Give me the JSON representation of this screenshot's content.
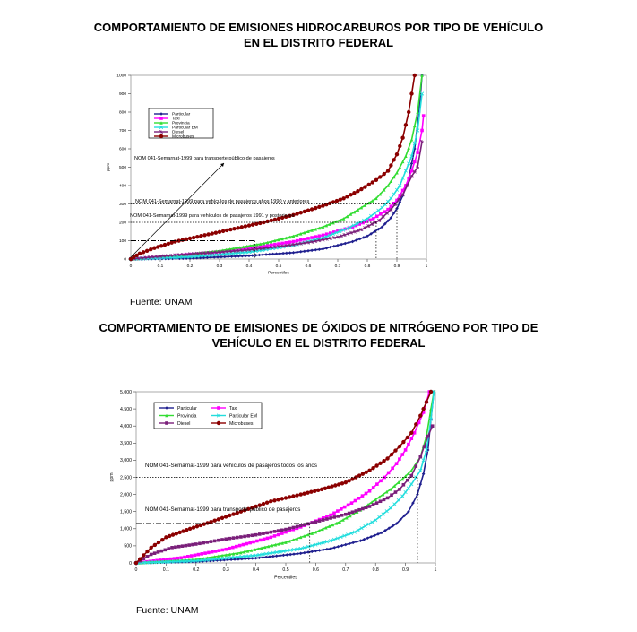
{
  "chart_data": [
    {
      "type": "scatter",
      "title": "COMPORTAMIENTO DE EMISIONES HIDROCARBUROS POR TIPO DE VEHÍCULO",
      "title_line2": "EN EL DISTRITO FEDERAL",
      "xlabel": "Percentiles",
      "ylabel": "ppm",
      "xlim": [
        0,
        1
      ],
      "ylim": [
        0,
        1000
      ],
      "x_ticks": [
        "0",
        "0.1",
        "0.2",
        "0.3",
        "0.4",
        "0.5",
        "0.6",
        "0.7",
        "0.8",
        "0.9",
        "1"
      ],
      "y_ticks": [
        "0",
        "100",
        "200",
        "300",
        "400",
        "500",
        "600",
        "700",
        "800",
        "900",
        "1000"
      ],
      "legend_position": "top-left",
      "source": "Fuente: UNAM",
      "series": [
        {
          "name": "Particular",
          "color": "#1f1f8f",
          "marker": "diamond",
          "points": [
            [
              0,
              0
            ],
            [
              0.2,
              4
            ],
            [
              0.4,
              18
            ],
            [
              0.55,
              35
            ],
            [
              0.65,
              55
            ],
            [
              0.75,
              95
            ],
            [
              0.8,
              125
            ],
            [
              0.85,
              175
            ],
            [
              0.88,
              225
            ],
            [
              0.9,
              275
            ],
            [
              0.92,
              345
            ],
            [
              0.94,
              440
            ],
            [
              0.96,
              600
            ],
            [
              0.975,
              800
            ],
            [
              0.985,
              1000
            ]
          ]
        },
        {
          "name": "Taxi",
          "color": "#ff00ff",
          "marker": "square",
          "points": [
            [
              0,
              0
            ],
            [
              0.1,
              10
            ],
            [
              0.3,
              40
            ],
            [
              0.45,
              70
            ],
            [
              0.55,
              95
            ],
            [
              0.65,
              130
            ],
            [
              0.75,
              175
            ],
            [
              0.82,
              220
            ],
            [
              0.87,
              270
            ],
            [
              0.9,
              320
            ],
            [
              0.93,
              400
            ],
            [
              0.95,
              480
            ],
            [
              0.97,
              580
            ],
            [
              0.985,
              700
            ],
            [
              0.99,
              780
            ]
          ]
        },
        {
          "name": "Provincia",
          "color": "#33dd33",
          "marker": "triangle",
          "points": [
            [
              0,
              0
            ],
            [
              0.15,
              18
            ],
            [
              0.3,
              45
            ],
            [
              0.45,
              85
            ],
            [
              0.55,
              125
            ],
            [
              0.65,
              175
            ],
            [
              0.72,
              220
            ],
            [
              0.78,
              280
            ],
            [
              0.83,
              330
            ],
            [
              0.87,
              400
            ],
            [
              0.9,
              470
            ],
            [
              0.93,
              560
            ],
            [
              0.95,
              650
            ],
            [
              0.97,
              800
            ],
            [
              0.985,
              1000
            ]
          ]
        },
        {
          "name": "Particular EM",
          "color": "#22dddd",
          "marker": "x",
          "points": [
            [
              0,
              0
            ],
            [
              0.2,
              12
            ],
            [
              0.4,
              38
            ],
            [
              0.55,
              75
            ],
            [
              0.65,
              115
            ],
            [
              0.73,
              165
            ],
            [
              0.8,
              220
            ],
            [
              0.85,
              280
            ],
            [
              0.88,
              330
            ],
            [
              0.91,
              400
            ],
            [
              0.93,
              480
            ],
            [
              0.95,
              560
            ],
            [
              0.97,
              700
            ],
            [
              0.985,
              900
            ]
          ]
        },
        {
          "name": "Diesel",
          "color": "#7a1f7a",
          "marker": "asterisk",
          "points": [
            [
              0,
              0
            ],
            [
              0.1,
              15
            ],
            [
              0.2,
              28
            ],
            [
              0.3,
              38
            ],
            [
              0.4,
              50
            ],
            [
              0.5,
              68
            ],
            [
              0.6,
              90
            ],
            [
              0.7,
              120
            ],
            [
              0.78,
              160
            ],
            [
              0.84,
              210
            ],
            [
              0.88,
              270
            ],
            [
              0.92,
              350
            ],
            [
              0.95,
              450
            ],
            [
              0.97,
              500
            ],
            [
              0.985,
              640
            ]
          ]
        },
        {
          "name": "Microbuses",
          "color": "#8b0000",
          "marker": "circle",
          "points": [
            [
              0,
              0
            ],
            [
              0.03,
              30
            ],
            [
              0.08,
              60
            ],
            [
              0.15,
              95
            ],
            [
              0.25,
              130
            ],
            [
              0.35,
              165
            ],
            [
              0.45,
              200
            ],
            [
              0.55,
              240
            ],
            [
              0.65,
              290
            ],
            [
              0.72,
              330
            ],
            [
              0.78,
              380
            ],
            [
              0.83,
              430
            ],
            [
              0.87,
              480
            ],
            [
              0.9,
              570
            ],
            [
              0.92,
              660
            ],
            [
              0.94,
              800
            ],
            [
              0.96,
              1000
            ]
          ]
        }
      ],
      "annotations": [
        {
          "text": "NOM 041-Semarnat-1999 para transporte público de pasajeros",
          "y": 100,
          "x_end": 0.42
        },
        {
          "text": "NOM 041-Semarnat-1999 para vehículos de pasajeros años 1990 y anteriores",
          "y": 300,
          "x_end": 0.9
        },
        {
          "text": "NOM 041-Semarnat-1999 para vehículos de pasajeros 1991 y posteriores",
          "y": 200,
          "x_end": 0.83
        }
      ]
    },
    {
      "type": "scatter",
      "title": "COMPORTAMIENTO DE EMISIONES DE ÓXIDOS DE NITRÓGENO POR TIPO DE",
      "title_line2": "VEHÍCULO EN EL DISTRITO FEDERAL",
      "xlabel": "Percentiles",
      "ylabel": "ppm",
      "xlim": [
        0,
        1
      ],
      "ylim": [
        0,
        5000
      ],
      "x_ticks": [
        "0",
        "0.1",
        "0.2",
        "0.3",
        "0.4",
        "0.5",
        "0.6",
        "0.7",
        "0.8",
        "0.9",
        "1"
      ],
      "y_ticks": [
        "0",
        "500",
        "1,000",
        "1,500",
        "2,000",
        "2,500",
        "3,000",
        "3,500",
        "4,000",
        "4,500",
        "5,000"
      ],
      "legend_position": "top-left",
      "source": "Fuente: UNAM",
      "series": [
        {
          "name": "Particular",
          "color": "#1f1f8f",
          "marker": "diamond",
          "points": [
            [
              0,
              0
            ],
            [
              0.2,
              40
            ],
            [
              0.4,
              140
            ],
            [
              0.55,
              280
            ],
            [
              0.65,
              420
            ],
            [
              0.75,
              650
            ],
            [
              0.82,
              880
            ],
            [
              0.87,
              1150
            ],
            [
              0.91,
              1500
            ],
            [
              0.94,
              2000
            ],
            [
              0.96,
              2600
            ],
            [
              0.975,
              3300
            ],
            [
              0.985,
              4200
            ],
            [
              0.995,
              5000
            ]
          ]
        },
        {
          "name": "Taxi",
          "color": "#ff00ff",
          "marker": "square",
          "points": [
            [
              0,
              0
            ],
            [
              0.15,
              150
            ],
            [
              0.3,
              400
            ],
            [
              0.45,
              750
            ],
            [
              0.55,
              1050
            ],
            [
              0.65,
              1400
            ],
            [
              0.72,
              1750
            ],
            [
              0.78,
              2100
            ],
            [
              0.83,
              2500
            ],
            [
              0.87,
              2900
            ],
            [
              0.9,
              3300
            ],
            [
              0.93,
              3800
            ],
            [
              0.96,
              4400
            ],
            [
              0.98,
              5000
            ]
          ]
        },
        {
          "name": "Provincia",
          "color": "#33dd33",
          "marker": "triangle",
          "points": [
            [
              0,
              0
            ],
            [
              0.2,
              100
            ],
            [
              0.35,
              300
            ],
            [
              0.5,
              600
            ],
            [
              0.6,
              900
            ],
            [
              0.68,
              1200
            ],
            [
              0.75,
              1550
            ],
            [
              0.8,
              1850
            ],
            [
              0.85,
              2150
            ],
            [
              0.89,
              2450
            ],
            [
              0.92,
              2700
            ],
            [
              0.95,
              3100
            ],
            [
              0.97,
              3700
            ],
            [
              0.985,
              4500
            ],
            [
              0.995,
              5000
            ]
          ]
        },
        {
          "name": "Particular EM",
          "color": "#22dddd",
          "marker": "x",
          "points": [
            [
              0,
              0
            ],
            [
              0.2,
              60
            ],
            [
              0.4,
              220
            ],
            [
              0.55,
              420
            ],
            [
              0.65,
              650
            ],
            [
              0.73,
              900
            ],
            [
              0.8,
              1250
            ],
            [
              0.85,
              1600
            ],
            [
              0.89,
              1950
            ],
            [
              0.92,
              2300
            ],
            [
              0.95,
              2700
            ],
            [
              0.97,
              3300
            ],
            [
              0.985,
              4200
            ],
            [
              0.995,
              5000
            ]
          ]
        },
        {
          "name": "Diesel",
          "color": "#7a1f7a",
          "marker": "square",
          "points": [
            [
              0,
              0
            ],
            [
              0.05,
              250
            ],
            [
              0.12,
              450
            ],
            [
              0.2,
              550
            ],
            [
              0.3,
              700
            ],
            [
              0.4,
              820
            ],
            [
              0.5,
              980
            ],
            [
              0.6,
              1200
            ],
            [
              0.7,
              1420
            ],
            [
              0.78,
              1650
            ],
            [
              0.84,
              1900
            ],
            [
              0.88,
              2150
            ],
            [
              0.92,
              2550
            ],
            [
              0.95,
              3100
            ],
            [
              0.975,
              3700
            ],
            [
              0.99,
              4000
            ]
          ]
        },
        {
          "name": "Microbuses",
          "color": "#8b0000",
          "marker": "circle",
          "points": [
            [
              0,
              0
            ],
            [
              0.05,
              450
            ],
            [
              0.1,
              750
            ],
            [
              0.18,
              1000
            ],
            [
              0.25,
              1200
            ],
            [
              0.35,
              1500
            ],
            [
              0.45,
              1800
            ],
            [
              0.55,
              2000
            ],
            [
              0.62,
              2150
            ],
            [
              0.7,
              2350
            ],
            [
              0.78,
              2700
            ],
            [
              0.84,
              3050
            ],
            [
              0.88,
              3400
            ],
            [
              0.92,
              3800
            ],
            [
              0.95,
              4300
            ],
            [
              0.97,
              4700
            ],
            [
              0.985,
              5000
            ]
          ]
        }
      ],
      "annotations": [
        {
          "text": "NOM 041-Semarnat-1999 para vehículos de pasajeros todos los años",
          "y": 2500,
          "x_end": 0.94
        },
        {
          "text": "NOM 041-Semarnat-1999 para transporte público de pasajeros",
          "y": 1150,
          "x_end": 0.58
        }
      ]
    }
  ]
}
